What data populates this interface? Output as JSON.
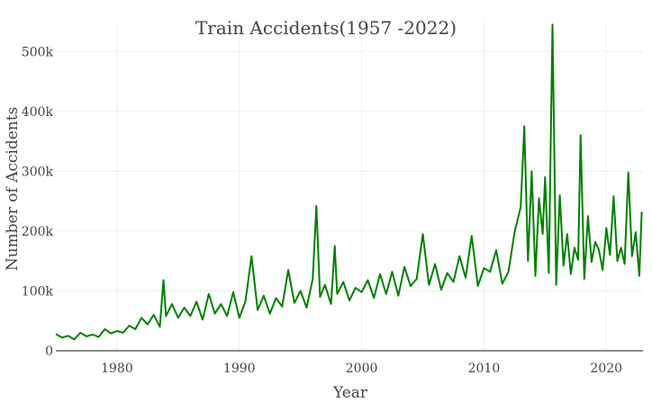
{
  "chart_data": {
    "type": "line",
    "title": "Train Accidents(1957 -2022)",
    "xlabel": "Year",
    "ylabel": "Number of Accidents",
    "xlim": [
      1975,
      2023
    ],
    "ylim": [
      0,
      550000
    ],
    "x_ticks": [
      1980,
      1990,
      2000,
      2010,
      2020
    ],
    "x_tick_labels": [
      "1980",
      "1990",
      "2000",
      "2010",
      "2020"
    ],
    "y_ticks": [
      0,
      100000,
      200000,
      300000,
      400000,
      500000
    ],
    "y_tick_labels": [
      "0",
      "100k",
      "200k",
      "300k",
      "400k",
      "500k"
    ],
    "grid": true,
    "legend": "none",
    "series": [
      {
        "color": "#008000",
        "x": [
          1975.0,
          1975.5,
          1976.0,
          1976.5,
          1977.0,
          1977.5,
          1978.0,
          1978.5,
          1979.0,
          1979.5,
          1980.0,
          1980.5,
          1981.0,
          1981.5,
          1982.0,
          1982.5,
          1983.0,
          1983.5,
          1983.8,
          1984.0,
          1984.5,
          1985.0,
          1985.5,
          1986.0,
          1986.5,
          1987.0,
          1987.5,
          1988.0,
          1988.5,
          1989.0,
          1989.5,
          1990.0,
          1990.5,
          1991.0,
          1991.5,
          1992.0,
          1992.5,
          1993.0,
          1993.5,
          1994.0,
          1994.5,
          1995.0,
          1995.5,
          1996.0,
          1996.3,
          1996.6,
          1997.0,
          1997.5,
          1997.8,
          1998.0,
          1998.5,
          1999.0,
          1999.5,
          2000.0,
          2000.5,
          2001.0,
          2001.5,
          2002.0,
          2002.5,
          2003.0,
          2003.5,
          2004.0,
          2004.5,
          2005.0,
          2005.5,
          2006.0,
          2006.5,
          2007.0,
          2007.5,
          2008.0,
          2008.5,
          2009.0,
          2009.5,
          2010.0,
          2010.5,
          2011.0,
          2011.5,
          2012.0,
          2012.5,
          2013.0,
          2013.3,
          2013.6,
          2013.9,
          2014.2,
          2014.5,
          2014.8,
          2015.0,
          2015.3,
          2015.6,
          2015.9,
          2016.2,
          2016.5,
          2016.8,
          2017.1,
          2017.4,
          2017.7,
          2017.9,
          2018.2,
          2018.5,
          2018.8,
          2019.1,
          2019.4,
          2019.7,
          2020.0,
          2020.3,
          2020.6,
          2020.9,
          2021.2,
          2021.5,
          2021.8,
          2022.1,
          2022.4,
          2022.7,
          2022.9
        ],
        "y": [
          28000,
          22000,
          25000,
          19000,
          30000,
          24000,
          27000,
          23000,
          36000,
          29000,
          33000,
          30000,
          42000,
          36000,
          55000,
          44000,
          60000,
          40000,
          118000,
          58000,
          78000,
          55000,
          72000,
          58000,
          82000,
          52000,
          95000,
          62000,
          78000,
          58000,
          98000,
          55000,
          82000,
          158000,
          68000,
          92000,
          62000,
          88000,
          74000,
          135000,
          80000,
          100000,
          72000,
          120000,
          242000,
          90000,
          110000,
          78000,
          175000,
          95000,
          115000,
          84000,
          105000,
          98000,
          118000,
          88000,
          128000,
          95000,
          132000,
          92000,
          140000,
          108000,
          120000,
          195000,
          110000,
          145000,
          102000,
          130000,
          115000,
          158000,
          122000,
          192000,
          108000,
          138000,
          132000,
          168000,
          112000,
          132000,
          198000,
          240000,
          375000,
          150000,
          300000,
          125000,
          255000,
          195000,
          290000,
          130000,
          545000,
          110000,
          260000,
          142000,
          195000,
          128000,
          172000,
          152000,
          360000,
          120000,
          225000,
          148000,
          182000,
          168000,
          135000,
          205000,
          160000,
          258000,
          150000,
          172000,
          145000,
          298000,
          158000,
          198000,
          125000,
          232000
        ]
      }
    ]
  }
}
